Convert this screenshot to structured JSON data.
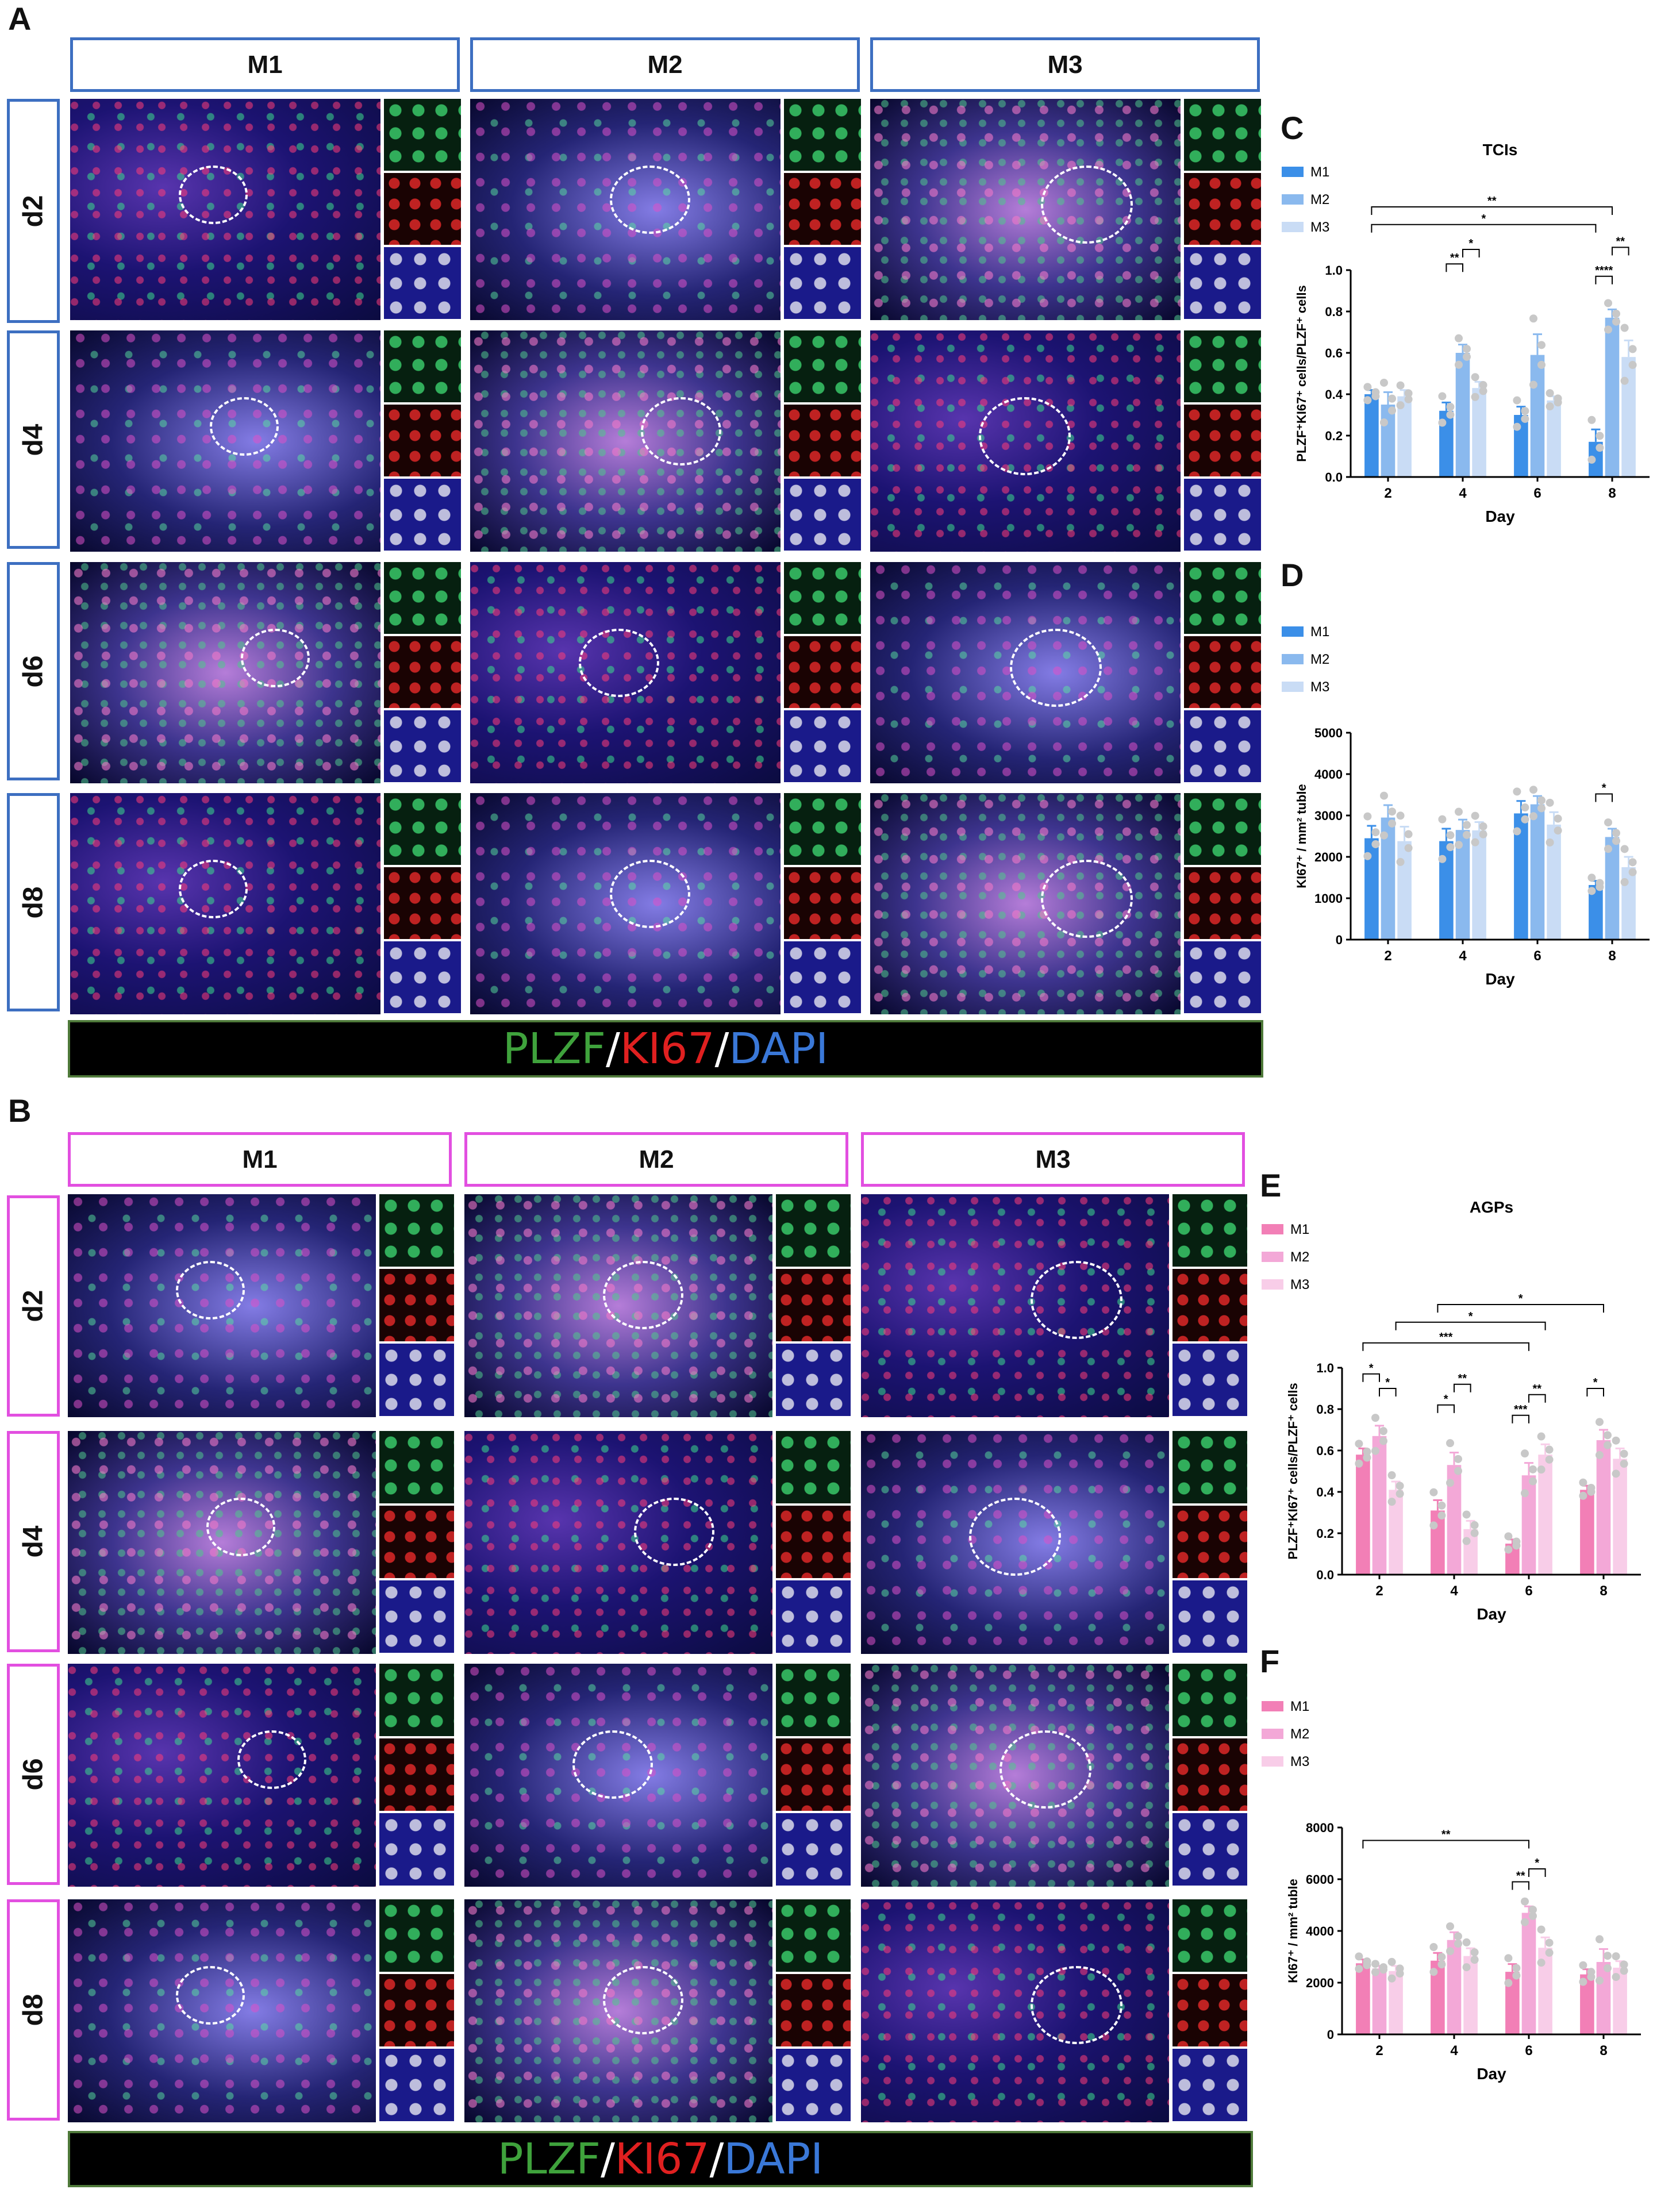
{
  "figure": {
    "panel_labels": [
      "A",
      "B",
      "C",
      "D",
      "E",
      "F"
    ],
    "columns": [
      "M1",
      "M2",
      "M3"
    ],
    "rows": [
      "d2",
      "d4",
      "d6",
      "d8"
    ],
    "stain_legend": {
      "plzf": "PLZF",
      "sep1": "/",
      "ki67": "KI67",
      "sep2": "/",
      "dapi": "DAPI"
    },
    "colors": {
      "panel_a_frame": "#3d6fc1",
      "panel_b_frame": "#e24fe0",
      "plzf": "#3fa23c",
      "ki67": "#e02020",
      "dapi": "#3a78d8"
    }
  },
  "chart_data": [
    {
      "id": "C",
      "type": "bar",
      "title": "TCIs",
      "xlabel": "Day",
      "ylabel": "PLZF⁺KI67⁺ cells/PLZF⁺ cells",
      "categories": [
        "2",
        "4",
        "6",
        "8"
      ],
      "ylim": [
        0,
        1.0
      ],
      "yticks": [
        "0.0",
        "0.2",
        "0.4",
        "0.6",
        "0.8",
        "1.0"
      ],
      "series": [
        {
          "name": "M1",
          "color": "#3b8fe8",
          "values": [
            0.4,
            0.32,
            0.3,
            0.17
          ],
          "errors": [
            0.02,
            0.04,
            0.04,
            0.06
          ]
        },
        {
          "name": "M2",
          "color": "#8ab9ee",
          "values": [
            0.35,
            0.6,
            0.59,
            0.77
          ],
          "errors": [
            0.06,
            0.04,
            0.1,
            0.04
          ]
        },
        {
          "name": "M3",
          "color": "#c9dcf5",
          "values": [
            0.39,
            0.43,
            0.37,
            0.58
          ],
          "errors": [
            0.03,
            0.03,
            0.02,
            0.08
          ]
        }
      ],
      "significance": [
        {
          "label": "**",
          "day": "2",
          "pair": [
            "M1",
            "M3"
          ],
          "to_day": "8",
          "to_series": "M2",
          "level": 1.35
        },
        {
          "label": "*",
          "day": "2",
          "pair": [
            "M1",
            "M1"
          ],
          "to_day": "8",
          "to_series": "M1",
          "level": 1.22
        },
        {
          "label": "**",
          "day": "4",
          "pair": [
            "M1",
            "M2"
          ],
          "level": 1.03
        },
        {
          "label": "*",
          "day": "4",
          "pair": [
            "M2",
            "M3"
          ],
          "level": 1.1
        },
        {
          "label": "****",
          "day": "8",
          "pair": [
            "M1",
            "M2"
          ],
          "level": 0.97
        },
        {
          "label": "**",
          "day": "8",
          "pair": [
            "M2",
            "M3"
          ],
          "level": 1.11
        }
      ],
      "legend_position": "top-left"
    },
    {
      "id": "D",
      "type": "bar",
      "title": "",
      "xlabel": "Day",
      "ylabel": "KI67⁺ / mm² tuble",
      "categories": [
        "2",
        "4",
        "6",
        "8"
      ],
      "ylim": [
        0,
        5000
      ],
      "yticks": [
        "0",
        "1000",
        "2000",
        "3000",
        "4000",
        "5000"
      ],
      "series": [
        {
          "name": "M1",
          "color": "#3b8fe8",
          "values": [
            2450,
            2380,
            3050,
            1320
          ],
          "errors": [
            300,
            300,
            300,
            100
          ]
        },
        {
          "name": "M2",
          "color": "#8ab9ee",
          "values": [
            2950,
            2650,
            3270,
            2480
          ],
          "errors": [
            300,
            250,
            200,
            200
          ]
        },
        {
          "name": "M3",
          "color": "#c9dcf5",
          "values": [
            2380,
            2640,
            2780,
            1750
          ],
          "errors": [
            350,
            200,
            300,
            250
          ]
        }
      ],
      "significance": [
        {
          "label": "*",
          "day": "8",
          "pair": [
            "M1",
            "M2"
          ],
          "level": 3520
        }
      ],
      "legend_position": "top-left"
    },
    {
      "id": "E",
      "type": "bar",
      "title": "AGPs",
      "xlabel": "Day",
      "ylabel": "PLZF⁺KI67⁺ cells/PLZF⁺ cells",
      "categories": [
        "2",
        "4",
        "6",
        "8"
      ],
      "ylim": [
        0,
        1.0
      ],
      "yticks": [
        "0.0",
        "0.2",
        "0.4",
        "0.6",
        "0.8",
        "1.0"
      ],
      "series": [
        {
          "name": "M1",
          "color": "#f27fb6",
          "values": [
            0.58,
            0.31,
            0.15,
            0.41
          ],
          "errors": [
            0.03,
            0.05,
            0.02,
            0.02
          ]
        },
        {
          "name": "M2",
          "color": "#f3a8d7",
          "values": [
            0.67,
            0.53,
            0.48,
            0.65
          ],
          "errors": [
            0.05,
            0.06,
            0.06,
            0.05
          ]
        },
        {
          "name": "M3",
          "color": "#f8cde8",
          "values": [
            0.41,
            0.22,
            0.58,
            0.56
          ],
          "errors": [
            0.04,
            0.04,
            0.05,
            0.05
          ]
        }
      ],
      "significance": [
        {
          "label": "*",
          "day": "4",
          "pair": [
            "M1",
            "M1"
          ],
          "to_day": "8",
          "to_series": "M2",
          "level": 1.34
        },
        {
          "label": "*",
          "day": "2",
          "pair": [
            "M3",
            "M3"
          ],
          "to_day": "6",
          "to_series": "M3",
          "level": 1.22
        },
        {
          "label": "***",
          "day": "2",
          "pair": [
            "M1",
            "M1"
          ],
          "to_day": "6",
          "to_series": "M2",
          "level": 1.12
        },
        {
          "label": "*",
          "day": "2",
          "pair": [
            "M1",
            "M2"
          ],
          "level": 0.97
        },
        {
          "label": "*",
          "day": "2",
          "pair": [
            "M2",
            "M3"
          ],
          "level": 0.9
        },
        {
          "label": "*",
          "day": "4",
          "pair": [
            "M1",
            "M2"
          ],
          "level": 0.82
        },
        {
          "label": "**",
          "day": "4",
          "pair": [
            "M2",
            "M3"
          ],
          "level": 0.92
        },
        {
          "label": "***",
          "day": "6",
          "pair": [
            "M1",
            "M2"
          ],
          "level": 0.77
        },
        {
          "label": "**",
          "day": "6",
          "pair": [
            "M2",
            "M3"
          ],
          "level": 0.87
        },
        {
          "label": "*",
          "day": "8",
          "pair": [
            "M1",
            "M2"
          ],
          "level": 0.9
        }
      ],
      "legend_position": "top-left"
    },
    {
      "id": "F",
      "type": "bar",
      "title": "",
      "xlabel": "Day",
      "ylabel": "KI67⁺ / mm² tuble",
      "categories": [
        "2",
        "4",
        "6",
        "8"
      ],
      "ylim": [
        0,
        8000
      ],
      "yticks": [
        "0",
        "2000",
        "4000",
        "6000",
        "8000"
      ],
      "series": [
        {
          "name": "M1",
          "color": "#f27fb6",
          "values": [
            2750,
            2850,
            2420,
            2320
          ],
          "errors": [
            150,
            300,
            300,
            200
          ]
        },
        {
          "name": "M2",
          "color": "#f3a8d7",
          "values": [
            2550,
            3650,
            4700,
            2800
          ],
          "errors": [
            100,
            300,
            250,
            500
          ]
        },
        {
          "name": "M3",
          "color": "#f8cde8",
          "values": [
            2450,
            3030,
            3350,
            2580
          ],
          "errors": [
            200,
            300,
            400,
            250
          ]
        }
      ],
      "significance": [
        {
          "label": "**",
          "day": "2",
          "pair": [
            "M1",
            "M1"
          ],
          "to_day": "6",
          "to_series": "M2",
          "level": 7500
        },
        {
          "label": "**",
          "day": "6",
          "pair": [
            "M1",
            "M2"
          ],
          "level": 5900
        },
        {
          "label": "*",
          "day": "6",
          "pair": [
            "M2",
            "M3"
          ],
          "level": 6400
        }
      ],
      "legend_position": "top-left"
    }
  ]
}
